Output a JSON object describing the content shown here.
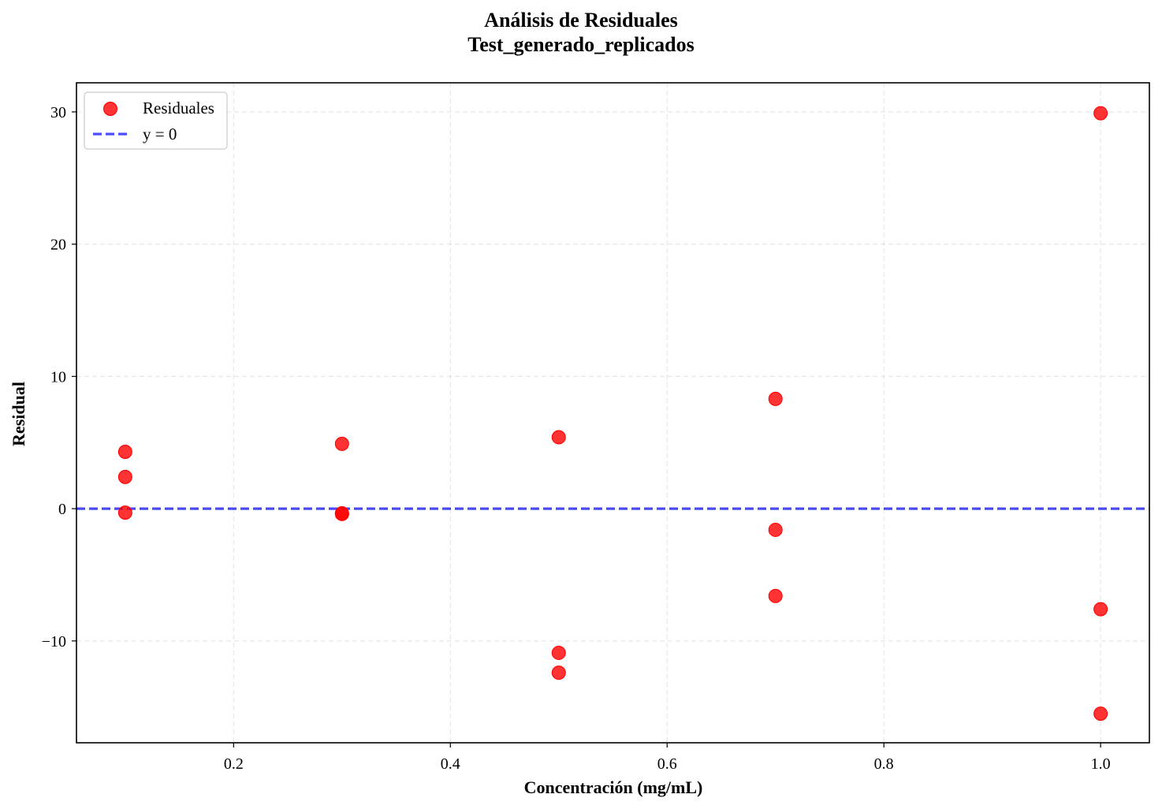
{
  "chart_data": {
    "type": "scatter",
    "title": "Análisis de Residuales",
    "subtitle": "Test_generado_replicados",
    "xlabel": "Concentración (mg/mL)",
    "ylabel": "Residual",
    "xlim": [
      0.055,
      1.045
    ],
    "ylim": [
      -17.7,
      32.2
    ],
    "xticks": [
      0.2,
      0.4,
      0.6,
      0.8,
      1.0
    ],
    "xtick_labels": [
      "0.2",
      "0.4",
      "0.6",
      "0.8",
      "1.0"
    ],
    "yticks": [
      -10,
      0,
      10,
      20,
      30
    ],
    "ytick_labels": [
      "−10",
      "0",
      "10",
      "20",
      "30"
    ],
    "grid": true,
    "legend_position": "upper-left",
    "series": [
      {
        "name": "Residuales",
        "kind": "scatter",
        "color": "#ff0000",
        "x": [
          0.1,
          0.1,
          0.1,
          0.3,
          0.3,
          0.3,
          0.5,
          0.5,
          0.5,
          0.7,
          0.7,
          0.7,
          1.0,
          1.0,
          1.0
        ],
        "y": [
          4.3,
          2.4,
          -0.3,
          4.9,
          -0.4,
          -0.35,
          5.4,
          -10.9,
          -12.4,
          8.3,
          -1.6,
          -6.6,
          29.9,
          -7.6,
          -15.5
        ]
      },
      {
        "name": "y = 0",
        "kind": "hline",
        "color": "#0000ff",
        "style": "dashed",
        "y": 0
      }
    ]
  }
}
